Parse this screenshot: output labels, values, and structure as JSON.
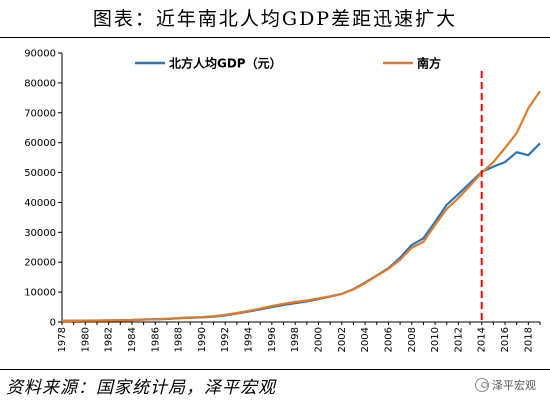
{
  "title": "图表：近年南北人均GDP差距迅速扩大",
  "source": "资料来源：国家统计局，泽平宏观",
  "watermark": "泽平宏观",
  "chart_data": {
    "type": "line",
    "x": [
      1978,
      1979,
      1980,
      1981,
      1982,
      1983,
      1984,
      1985,
      1986,
      1987,
      1988,
      1989,
      1990,
      1991,
      1992,
      1993,
      1994,
      1995,
      1996,
      1997,
      1998,
      1999,
      2000,
      2001,
      2002,
      2003,
      2004,
      2005,
      2006,
      2007,
      2008,
      2009,
      2010,
      2011,
      2012,
      2013,
      2014,
      2015,
      2016,
      2017,
      2018,
      2019
    ],
    "x_tick_labels": [
      "1978",
      "1980",
      "1982",
      "1984",
      "1986",
      "1988",
      "1990",
      "1992",
      "1994",
      "1996",
      "1998",
      "2000",
      "2002",
      "2004",
      "2006",
      "2008",
      "2010",
      "2012",
      "2014",
      "2016",
      "2018"
    ],
    "y_ticks": [
      0,
      10000,
      20000,
      30000,
      40000,
      50000,
      60000,
      70000,
      80000,
      90000
    ],
    "ylim": [
      0,
      90000
    ],
    "xlim": [
      1978,
      2019
    ],
    "series": [
      {
        "name": "北方人均GDP（元）",
        "color": "#2e75b6",
        "values": [
          400,
          430,
          470,
          500,
          540,
          590,
          680,
          820,
          900,
          1020,
          1250,
          1400,
          1550,
          1800,
          2200,
          2800,
          3500,
          4200,
          5000,
          5700,
          6300,
          6900,
          7700,
          8500,
          9400,
          11000,
          13200,
          15600,
          18000,
          21500,
          25800,
          28000,
          33500,
          39200,
          42800,
          46500,
          50200,
          52000,
          53500,
          56800,
          55800,
          59800
        ]
      },
      {
        "name": "南方",
        "color": "#e07b2a",
        "values": [
          350,
          380,
          420,
          460,
          500,
          560,
          680,
          850,
          950,
          1100,
          1350,
          1500,
          1650,
          1950,
          2400,
          3000,
          3700,
          4500,
          5400,
          6100,
          6700,
          7200,
          7900,
          8600,
          9400,
          10900,
          13000,
          15500,
          17800,
          20800,
          24900,
          26800,
          32500,
          37800,
          41500,
          45600,
          50000,
          53500,
          58200,
          63200,
          71500,
          77200
        ]
      }
    ],
    "annotations": [
      {
        "type": "vertical-dashed-line",
        "x": 2014,
        "color": "#ff0000"
      }
    ],
    "legend_position": "top",
    "grid": false
  }
}
